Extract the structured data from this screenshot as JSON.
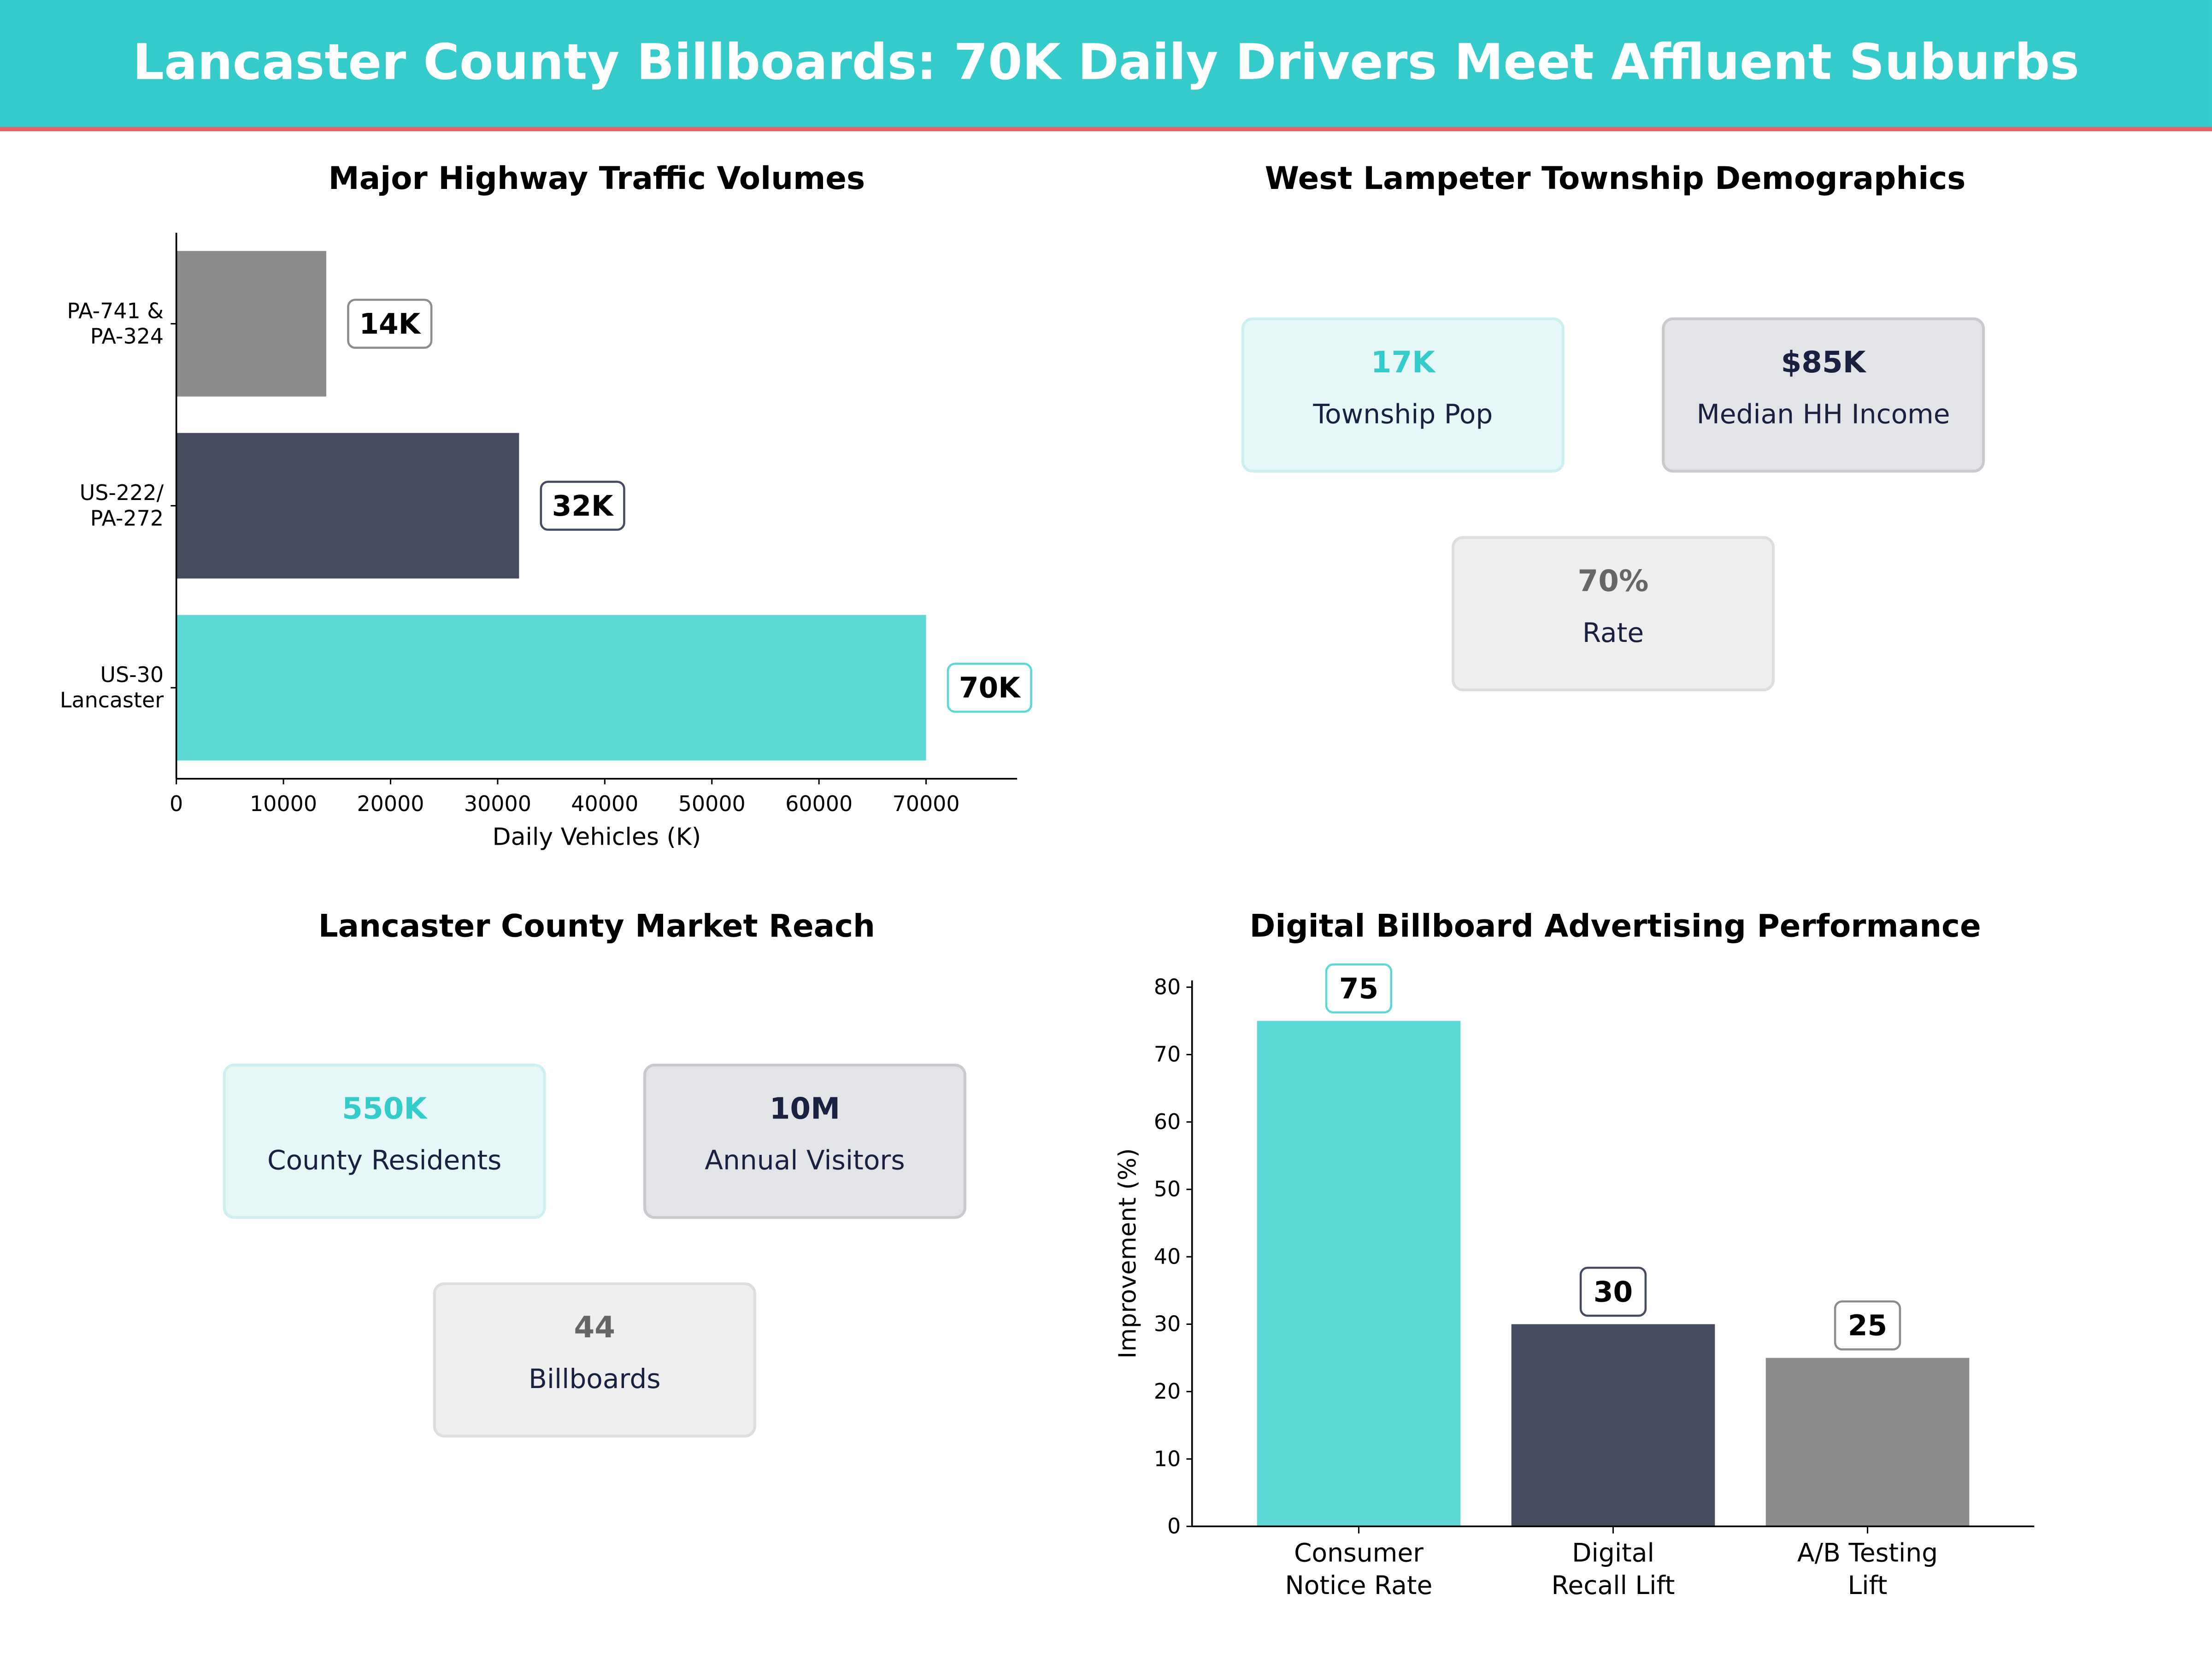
{
  "header": {
    "title": "Lancaster County Billboards: 70K Daily Drivers Meet Affluent Suburbs"
  },
  "colors": {
    "teal": "#5DD8D6",
    "navy": "#464B60",
    "gray": "#8C8C8C",
    "header_bg": "#35CBCB",
    "header_border": "#E8606A"
  },
  "demographics": {
    "title": "West Lampeter Township Demographics",
    "cards": [
      {
        "value": "17K",
        "label": "Township Pop"
      },
      {
        "value": "$85K",
        "label": "Median HH Income"
      },
      {
        "value": "70%",
        "label": "Rate"
      }
    ]
  },
  "market": {
    "title": "Lancaster County Market Reach",
    "cards": [
      {
        "value": "550K",
        "label": "County Residents"
      },
      {
        "value": "10M",
        "label": "Annual Visitors"
      },
      {
        "value": "44",
        "label": "Billboards"
      }
    ]
  },
  "chart_data": [
    {
      "type": "bar",
      "orientation": "horizontal",
      "title": "Major Highway Traffic Volumes",
      "xlabel": "Daily Vehicles (K)",
      "ylabel": "",
      "categories": [
        "PA-741 &\nPA-324",
        "US-222/\nPA-272",
        "US-30\nLancaster"
      ],
      "values": [
        14000,
        32000,
        70000
      ],
      "data_labels": [
        "14K",
        "32K",
        "70K"
      ],
      "bar_colors": [
        "#8C8C8C",
        "#464B60",
        "#5DD8D6"
      ],
      "xlim": [
        0,
        78500
      ],
      "xticks": [
        0,
        10000,
        20000,
        30000,
        40000,
        50000,
        60000,
        70000
      ],
      "grid": false
    },
    {
      "type": "bar",
      "title": "Digital Billboard Advertising Performance",
      "xlabel": "",
      "ylabel": "Improvement (%)",
      "categories": [
        "Consumer\nNotice Rate",
        "Digital\nRecall Lift",
        "A/B Testing\nLift"
      ],
      "values": [
        75,
        30,
        25
      ],
      "data_labels": [
        "75",
        "30",
        "25"
      ],
      "bar_colors": [
        "#5DD8D6",
        "#464B60",
        "#8C8C8C"
      ],
      "ylim": [
        0,
        81
      ],
      "yticks": [
        0,
        10,
        20,
        30,
        40,
        50,
        60,
        70,
        80
      ],
      "grid": false
    }
  ]
}
